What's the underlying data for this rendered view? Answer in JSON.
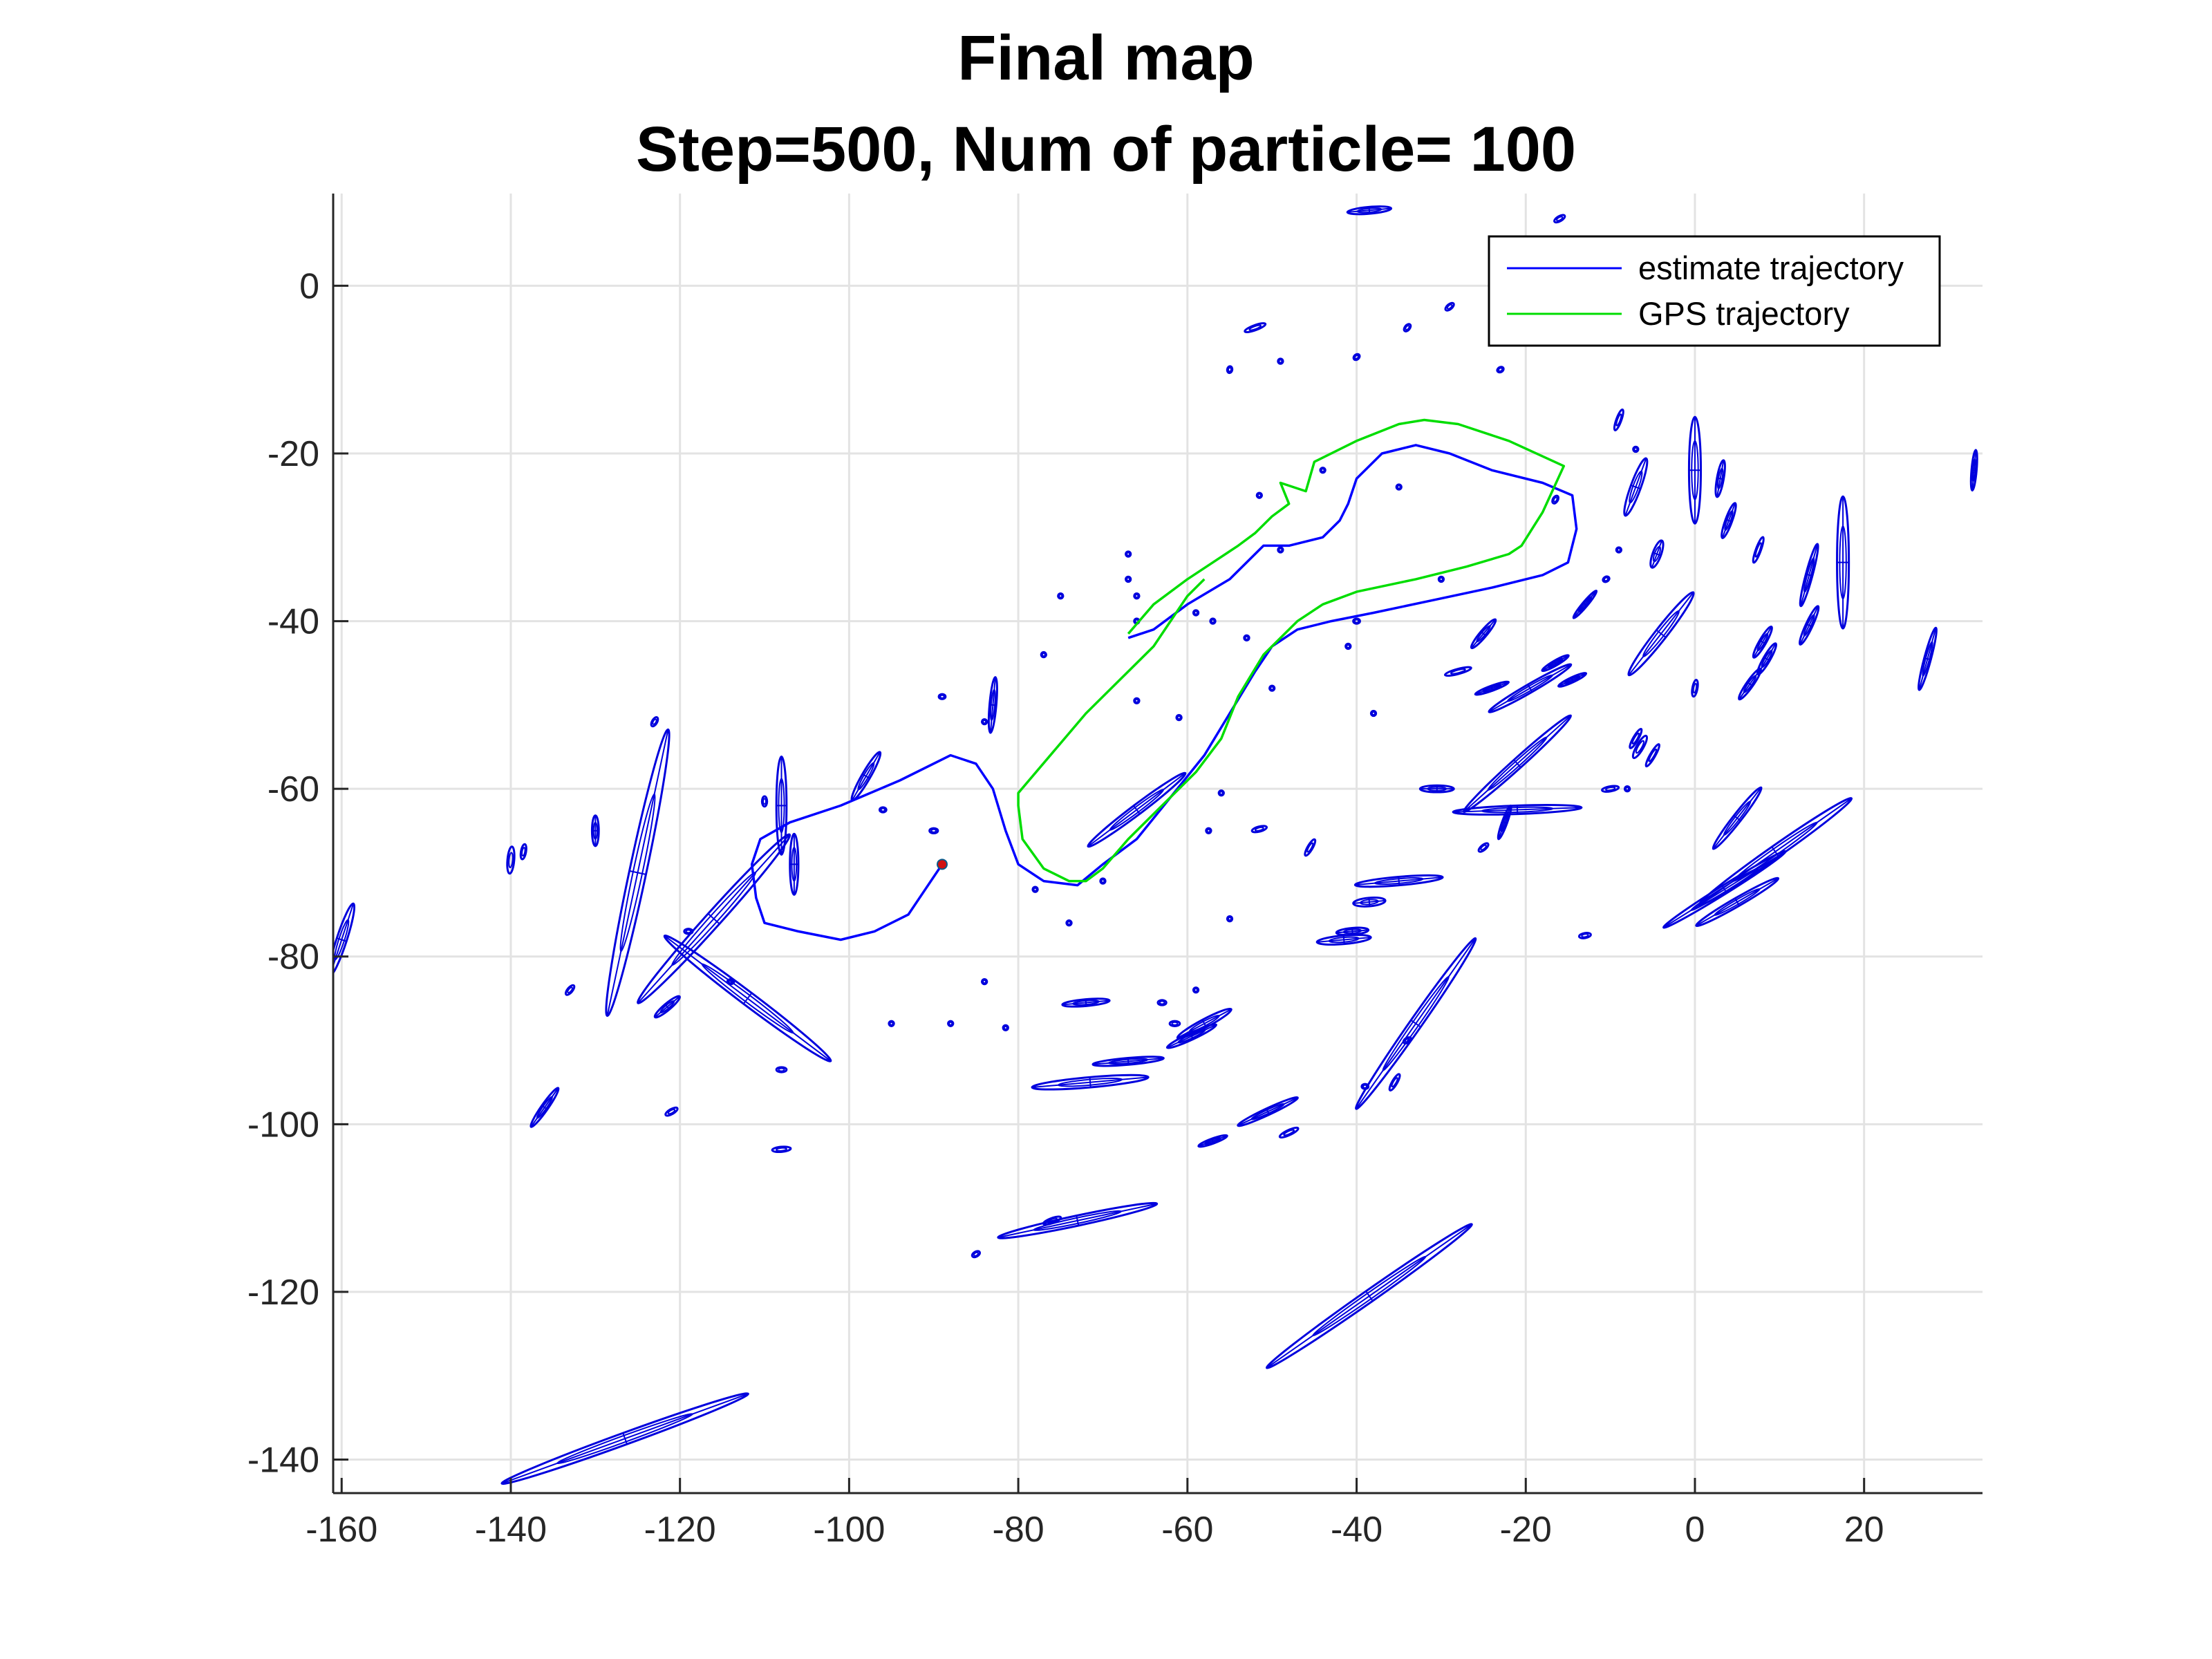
{
  "chart_data": {
    "type": "scatter",
    "title": "Final map",
    "subtitle": "Step=500, Num of particle= 100",
    "xlabel": "",
    "ylabel": "",
    "xlim": [
      -161,
      34
    ],
    "ylim": [
      -144,
      11
    ],
    "xticks": [
      -160,
      -140,
      -120,
      -100,
      -80,
      -60,
      -40,
      -20,
      0,
      20
    ],
    "yticks": [
      0,
      -20,
      -40,
      -60,
      -80,
      -100,
      -120,
      -140
    ],
    "grid": true,
    "legend_position": "top-right",
    "colors": {
      "estimate": "#0000ff",
      "gps": "#00dd00",
      "landmark": "#0000dd",
      "start_marker": "#d01010"
    },
    "series": [
      {
        "name": "estimate trajectory",
        "points": [
          [
            -89,
            -69
          ],
          [
            -91,
            -72
          ],
          [
            -93,
            -75
          ],
          [
            -97,
            -77
          ],
          [
            -101,
            -78
          ],
          [
            -106,
            -77
          ],
          [
            -110,
            -76
          ],
          [
            -111,
            -73
          ],
          [
            -111.5,
            -69
          ],
          [
            -110.5,
            -66
          ],
          [
            -107,
            -64
          ],
          [
            -101,
            -62
          ],
          [
            -94,
            -59
          ],
          [
            -88,
            -56
          ],
          [
            -85,
            -57
          ],
          [
            -83,
            -60
          ],
          [
            -81.5,
            -65
          ],
          [
            -80,
            -69
          ],
          [
            -77,
            -71
          ],
          [
            -73,
            -71.5
          ],
          [
            -70,
            -69
          ],
          [
            -66,
            -66
          ],
          [
            -62,
            -61
          ],
          [
            -58,
            -56
          ],
          [
            -55,
            -51
          ],
          [
            -52,
            -46
          ],
          [
            -50,
            -43
          ],
          [
            -47,
            -41
          ],
          [
            -43,
            -40
          ],
          [
            -38,
            -39
          ],
          [
            -31,
            -37.5
          ],
          [
            -24,
            -36
          ],
          [
            -18,
            -34.5
          ],
          [
            -15,
            -33
          ],
          [
            -14,
            -29
          ],
          [
            -14.5,
            -25
          ],
          [
            -18,
            -23.5
          ],
          [
            -24,
            -22
          ],
          [
            -29,
            -20
          ],
          [
            -33,
            -19
          ],
          [
            -37,
            -20
          ],
          [
            -40,
            -23
          ],
          [
            -41,
            -26
          ],
          [
            -42,
            -28
          ],
          [
            -44,
            -30
          ],
          [
            -48,
            -31
          ],
          [
            -51,
            -31
          ],
          [
            -55,
            -35
          ],
          [
            -60,
            -38
          ],
          [
            -64,
            -41
          ],
          [
            -67,
            -42
          ]
        ]
      },
      {
        "name": "GPS trajectory",
        "points": [
          [
            -67,
            -41.5
          ],
          [
            -64,
            -38
          ],
          [
            -60,
            -35
          ],
          [
            -57,
            -33
          ],
          [
            -54,
            -31
          ],
          [
            -52,
            -29.5
          ],
          [
            -50,
            -27.5
          ],
          [
            -48,
            -26
          ],
          [
            -49,
            -23.5
          ],
          [
            -46,
            -24.5
          ],
          [
            -45,
            -21
          ],
          [
            -40,
            -18.5
          ],
          [
            -35,
            -16.5
          ],
          [
            -32,
            -16
          ],
          [
            -28,
            -16.5
          ],
          [
            -22,
            -18.5
          ],
          [
            -15.5,
            -21.5
          ],
          [
            -18,
            -27
          ],
          [
            -20.5,
            -31
          ],
          [
            -22,
            -32
          ],
          [
            -27,
            -33.5
          ],
          [
            -33,
            -35
          ],
          [
            -40,
            -36.5
          ],
          [
            -44,
            -38
          ],
          [
            -47,
            -40
          ],
          [
            -51,
            -44
          ],
          [
            -54,
            -49
          ],
          [
            -56,
            -54
          ],
          [
            -59,
            -58
          ],
          [
            -63,
            -62
          ],
          [
            -67,
            -66
          ],
          [
            -70,
            -69.5
          ],
          [
            -72,
            -71
          ],
          [
            -74,
            -71
          ],
          [
            -77,
            -69.5
          ],
          [
            -79.5,
            -66
          ],
          [
            -80,
            -62
          ],
          [
            -80,
            -60.5
          ],
          [
            -72,
            -51
          ],
          [
            -64,
            -43
          ],
          [
            -60,
            -37
          ],
          [
            -58,
            -35
          ]
        ]
      }
    ],
    "landmarks": [
      [
        -125,
        -70,
        17.3,
        1.0,
        -78
      ],
      [
        -112,
        -85,
        12.3,
        0.8,
        37
      ],
      [
        -108,
        -62,
        5.8,
        0.6,
        -90
      ],
      [
        -106.5,
        -69,
        3.6,
        0.5,
        -90
      ],
      [
        -116,
        -75.5,
        13.4,
        0.9,
        -48
      ],
      [
        -98,
        -58.5,
        3.3,
        0.5,
        -60
      ],
      [
        -83,
        -50,
        3.3,
        0.4,
        -85
      ],
      [
        -38.5,
        9,
        2.6,
        0.4,
        -5
      ],
      [
        -52,
        -5,
        1.3,
        0.3,
        -20
      ],
      [
        -7,
        -24,
        3.6,
        0.6,
        -70
      ],
      [
        0,
        -22,
        6.3,
        0.7,
        -90
      ],
      [
        3,
        -23,
        2.2,
        0.4,
        -80
      ],
      [
        4,
        -28,
        2.2,
        0.4,
        -70
      ],
      [
        7.5,
        -31.5,
        1.6,
        0.3,
        -70
      ],
      [
        -4.5,
        -32,
        1.7,
        0.5,
        -70
      ],
      [
        -4,
        -41.5,
        6.2,
        0.7,
        -52
      ],
      [
        13.5,
        -34.5,
        3.8,
        0.4,
        -75
      ],
      [
        17.5,
        -33,
        7.8,
        0.7,
        -90
      ],
      [
        13.5,
        -40.5,
        2.5,
        0.4,
        -65
      ],
      [
        8,
        -42.5,
        2.1,
        0.4,
        -60
      ],
      [
        8.5,
        -44.5,
        2.1,
        0.4,
        -60
      ],
      [
        6.5,
        -47.5,
        2.2,
        0.4,
        -55
      ],
      [
        -16.5,
        -45,
        1.8,
        0.3,
        -30
      ],
      [
        -14.5,
        -47,
        1.8,
        0.3,
        -25
      ],
      [
        -19.5,
        -48,
        5.6,
        0.5,
        -30
      ],
      [
        -24,
        -48,
        2.1,
        0.3,
        -20
      ],
      [
        -22.5,
        -64,
        2.1,
        0.3,
        -70
      ],
      [
        -25,
        -67,
        0.7,
        0.3,
        -40
      ],
      [
        -45.5,
        -67,
        1.1,
        0.3,
        -60
      ],
      [
        -66,
        -62.5,
        7.2,
        0.6,
        -37
      ],
      [
        -40,
        -40,
        0.4,
        0.3,
        0
      ],
      [
        -25,
        -41.5,
        2.2,
        0.4,
        -50
      ],
      [
        -13,
        -38,
        2.1,
        0.3,
        -50
      ],
      [
        0,
        -48,
        1.0,
        0.3,
        -80
      ],
      [
        -7,
        -54,
        1.3,
        0.3,
        -60
      ],
      [
        -6.5,
        -55,
        1.5,
        0.4,
        -60
      ],
      [
        -5,
        -56,
        1.5,
        0.3,
        -60
      ],
      [
        -10,
        -60,
        1.0,
        0.3,
        -10
      ],
      [
        -21,
        -57,
        8.5,
        0.6,
        -42
      ],
      [
        -21,
        -62.5,
        7.6,
        0.5,
        -2
      ],
      [
        -35,
        -71,
        5.2,
        0.5,
        -5
      ],
      [
        -38.5,
        -73.5,
        1.9,
        0.5,
        -5
      ],
      [
        -41.5,
        -78,
        3.2,
        0.5,
        -5
      ],
      [
        -40.5,
        -77,
        1.9,
        0.4,
        -5
      ],
      [
        -30.5,
        -60,
        2.0,
        0.4,
        0
      ],
      [
        5,
        -63.5,
        4.6,
        0.5,
        -52
      ],
      [
        9.5,
        -67.5,
        11.0,
        0.7,
        -35
      ],
      [
        3.5,
        -72,
        8.5,
        0.5,
        -32
      ],
      [
        5,
        -73.5,
        5.6,
        0.5,
        -30
      ],
      [
        -13,
        -77.5,
        0.7,
        0.3,
        -10
      ],
      [
        -33,
        -88,
        12.3,
        0.7,
        -55
      ],
      [
        -39,
        -95.5,
        0.4,
        0.3,
        0
      ],
      [
        -35.5,
        -95,
        1.1,
        0.3,
        -60
      ],
      [
        -34,
        -90,
        0.5,
        0.3,
        -30
      ],
      [
        -50.5,
        -98.5,
        3.9,
        0.4,
        -25
      ],
      [
        -48,
        -101,
        1.2,
        0.3,
        -25
      ],
      [
        -57,
        -102,
        1.8,
        0.3,
        -20
      ],
      [
        -58,
        -88,
        3.6,
        0.5,
        -28
      ],
      [
        -61.5,
        -88,
        0.6,
        0.3,
        0
      ],
      [
        -72,
        -85.5,
        2.8,
        0.4,
        -5
      ],
      [
        -63,
        -85.5,
        0.5,
        0.3,
        0
      ],
      [
        -67,
        -92.5,
        4.2,
        0.4,
        -5
      ],
      [
        -71.5,
        -95,
        6.9,
        0.6,
        -5
      ],
      [
        -59.5,
        -89.5,
        3.2,
        0.4,
        -25
      ],
      [
        -73,
        -111.5,
        9.6,
        0.6,
        -12
      ],
      [
        -76,
        -111.5,
        1.1,
        0.3,
        -20
      ],
      [
        -38.5,
        -120.5,
        14.8,
        0.7,
        -35
      ],
      [
        -126.5,
        -137.5,
        15.5,
        0.7,
        -20
      ],
      [
        -136,
        -98,
        2.8,
        0.4,
        -55
      ],
      [
        -121,
        -98.5,
        0.8,
        0.3,
        -30
      ],
      [
        -121.5,
        -86,
        1.9,
        0.4,
        -40
      ],
      [
        -108,
        -93.5,
        0.6,
        0.3,
        0
      ],
      [
        -108,
        -103,
        1.1,
        0.3,
        -5
      ],
      [
        -119,
        -77,
        0.5,
        0.3,
        0
      ],
      [
        -114,
        -83,
        0.4,
        0.3,
        0
      ],
      [
        -133,
        -84,
        0.7,
        0.3,
        -50
      ],
      [
        -138.5,
        -67.5,
        0.9,
        0.3,
        -80
      ],
      [
        -140,
        -68.5,
        1.6,
        0.4,
        -85
      ],
      [
        -130,
        -65,
        1.8,
        0.4,
        -90
      ],
      [
        -123,
        -52,
        0.6,
        0.3,
        -60
      ],
      [
        -160,
        -78,
        4.5,
        0.6,
        -72
      ],
      [
        -110,
        -61.5,
        0.6,
        0.3,
        -90
      ],
      [
        -96,
        -62.5,
        0.4,
        0.3,
        0
      ],
      [
        -90,
        -65,
        0.5,
        0.3,
        0
      ],
      [
        -84,
        -83,
        0.3,
        0.3,
        0
      ],
      [
        -88,
        -88,
        0.3,
        0.3,
        0
      ],
      [
        -95,
        -88,
        0.3,
        0.3,
        0
      ],
      [
        -81.5,
        -88.5,
        0.3,
        0.3,
        0
      ],
      [
        -85,
        -115.5,
        0.5,
        0.3,
        -30
      ],
      [
        -74,
        -76,
        0.3,
        0.3,
        0
      ],
      [
        -78,
        -72,
        0.3,
        0.3,
        0
      ],
      [
        -55,
        -75.5,
        0.3,
        0.3,
        0
      ],
      [
        -56,
        -60.5,
        0.3,
        0.3,
        0
      ],
      [
        -66,
        -49.5,
        0.3,
        0.3,
        0
      ],
      [
        -61,
        -51.5,
        0.3,
        0.3,
        0
      ],
      [
        -84,
        -52,
        0.3,
        0.3,
        0
      ],
      [
        -77,
        -44,
        0.3,
        0.3,
        0
      ],
      [
        -89,
        -49,
        0.4,
        0.3,
        0
      ],
      [
        -66,
        -40,
        0.3,
        0.3,
        0
      ],
      [
        -75,
        -37,
        0.3,
        0.3,
        0
      ],
      [
        -67,
        -35,
        0.3,
        0.3,
        0
      ],
      [
        -59,
        -39,
        0.3,
        0.3,
        0
      ],
      [
        -57,
        -40,
        0.3,
        0.3,
        0
      ],
      [
        -49,
        -31.5,
        0.3,
        0.3,
        0
      ],
      [
        -51.5,
        -25,
        0.3,
        0.3,
        0
      ],
      [
        -55,
        -10,
        0.4,
        0.3,
        -80
      ],
      [
        -49,
        -9,
        0.3,
        0.3,
        0
      ],
      [
        -40,
        -8.5,
        0.4,
        0.3,
        -40
      ],
      [
        -34,
        -5,
        0.5,
        0.3,
        -50
      ],
      [
        -29,
        -2.5,
        0.6,
        0.3,
        -40
      ],
      [
        -23,
        -10,
        0.4,
        0.3,
        -30
      ],
      [
        -16,
        8,
        0.7,
        0.3,
        -30
      ],
      [
        -9,
        -16,
        1.3,
        0.3,
        -70
      ],
      [
        -7,
        -19.5,
        0.3,
        0.3,
        0
      ],
      [
        -9,
        -31.5,
        0.3,
        0.3,
        0
      ],
      [
        -16.5,
        -25.5,
        0.5,
        0.3,
        -60
      ],
      [
        -10.5,
        -35,
        0.4,
        0.3,
        -30
      ],
      [
        -8,
        -60,
        0.3,
        0.3,
        0
      ],
      [
        -44,
        -22,
        0.3,
        0.3,
        0
      ],
      [
        -30,
        -35,
        0.3,
        0.3,
        0
      ],
      [
        -35,
        -24,
        0.3,
        0.3,
        0
      ],
      [
        -57.5,
        -65,
        0.3,
        0.3,
        0
      ],
      [
        -51.5,
        -64.8,
        0.9,
        0.3,
        -15
      ],
      [
        -70,
        -71,
        0.3,
        0.3,
        0
      ],
      [
        -66,
        -37,
        0.3,
        0.3,
        0
      ],
      [
        -67,
        -32,
        0.3,
        0.3,
        0
      ],
      [
        -53,
        -42,
        0.3,
        0.3,
        0
      ],
      [
        33,
        -22,
        2.4,
        0.3,
        -85
      ],
      [
        27.5,
        -44.5,
        3.8,
        0.4,
        -75
      ],
      [
        -28,
        -46,
        1.6,
        0.3,
        -15
      ],
      [
        -50,
        -48,
        0.3,
        0.3,
        0
      ],
      [
        -41,
        -43,
        0.3,
        0.3,
        0
      ],
      [
        -38,
        -51,
        0.3,
        0.3,
        0
      ],
      [
        -59,
        -84,
        0.3,
        0.3,
        0
      ]
    ],
    "start_marker": [
      -89,
      -69
    ]
  }
}
